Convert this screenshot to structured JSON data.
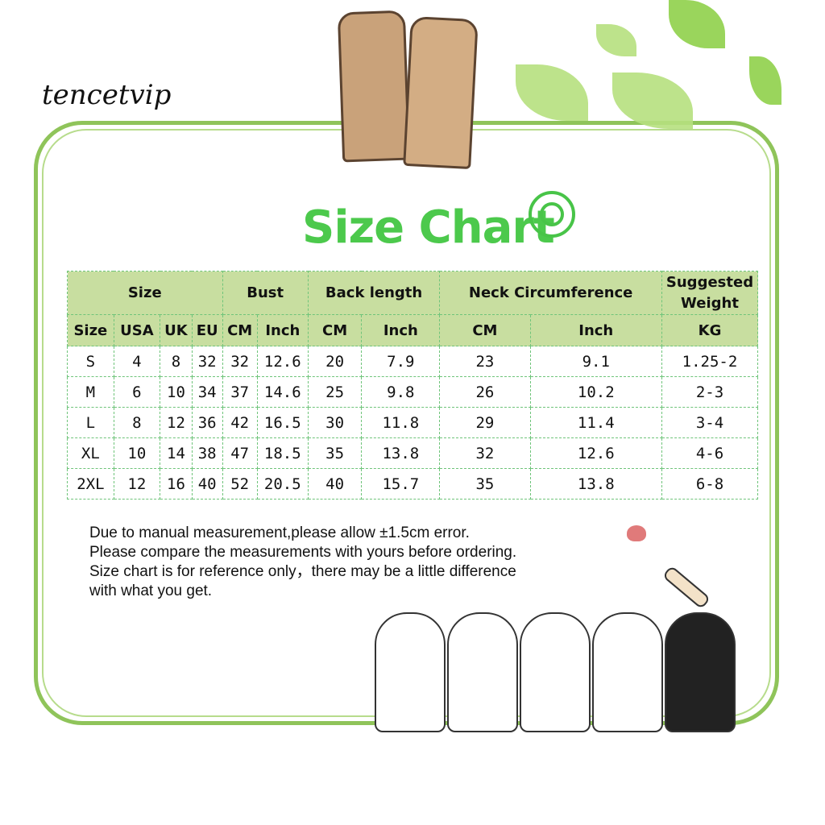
{
  "brand": "tencetvip",
  "title": "Size Chart",
  "table": {
    "group_headers": [
      "Size",
      "Bust",
      "Back length",
      "Neck Circumference",
      "Suggested Weight"
    ],
    "sub_headers": [
      "Size",
      "USA",
      "UK",
      "EU",
      "CM",
      "Inch",
      "CM",
      "Inch",
      "CM",
      "Inch",
      "KG"
    ],
    "rows": [
      [
        "S",
        "4",
        "8",
        "32",
        "32",
        "12.6",
        "20",
        "7.9",
        "23",
        "9.1",
        "1.25-2"
      ],
      [
        "M",
        "6",
        "10",
        "34",
        "37",
        "14.6",
        "25",
        "9.8",
        "26",
        "10.2",
        "2-3"
      ],
      [
        "L",
        "8",
        "12",
        "36",
        "42",
        "16.5",
        "30",
        "11.8",
        "29",
        "11.4",
        "3-4"
      ],
      [
        "XL",
        "10",
        "14",
        "38",
        "47",
        "18.5",
        "35",
        "13.8",
        "32",
        "12.6",
        "4-6"
      ],
      [
        "2XL",
        "12",
        "16",
        "40",
        "52",
        "20.5",
        "40",
        "15.7",
        "35",
        "13.8",
        "6-8"
      ]
    ]
  },
  "notes": [
    "Due to manual measurement,please allow ±1.5cm error.",
    "Please compare the measurements with yours before ordering.",
    "Size chart is for reference only，there may be a little difference",
    "with what you get."
  ],
  "colors": {
    "frame": "#8fc45a",
    "header_bg": "#c8dea0",
    "title": "#4cc94c"
  }
}
